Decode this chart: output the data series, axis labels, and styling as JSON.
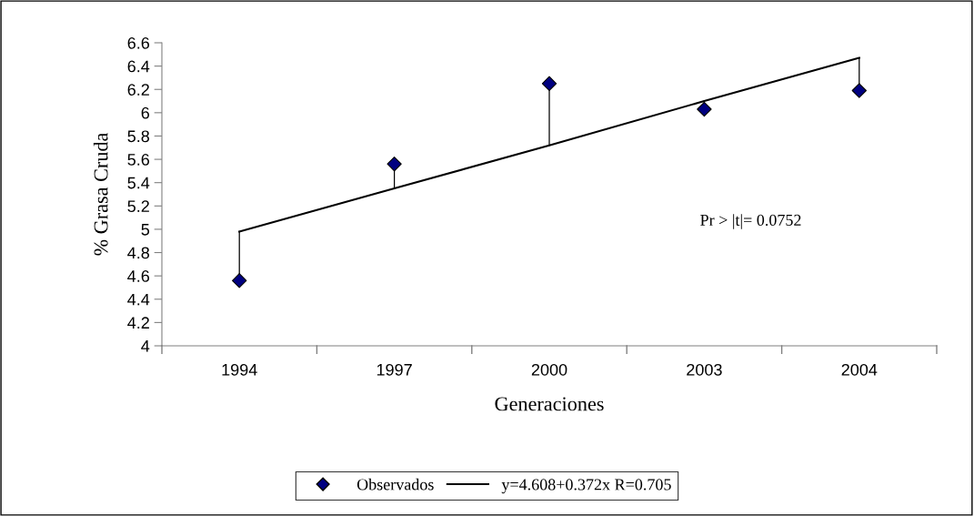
{
  "chart_data": {
    "type": "scatter",
    "xlabel": "Generaciones",
    "ylabel": "% Grasa Cruda",
    "categories": [
      "1994",
      "1997",
      "2000",
      "2003",
      "2004"
    ],
    "series": [
      {
        "name": "Observados",
        "color": "#000080",
        "marker": "diamond",
        "values": [
          4.56,
          5.56,
          6.25,
          6.03,
          6.19
        ],
        "errors": [
          [
            4.56,
            4.98
          ],
          [
            5.35,
            5.56
          ],
          [
            5.72,
            6.25
          ],
          [
            6.03,
            6.1
          ],
          [
            6.19,
            6.47
          ]
        ]
      },
      {
        "name": "y=4.608+0.372x R=0.705",
        "type": "line",
        "color": "#000000",
        "marker": "none",
        "line_style": "solid",
        "values": [
          4.98,
          5.35,
          5.72,
          6.1,
          6.47
        ]
      }
    ],
    "ylim": [
      4,
      6.6
    ],
    "yticks": [
      4,
      4.2,
      4.4,
      4.6,
      4.8,
      5,
      5.2,
      5.4,
      5.6,
      5.8,
      6,
      6.2,
      6.4,
      6.6
    ],
    "annotations": [
      "Pr > |t|= 0.0752"
    ],
    "grid": false,
    "legend": "bottom"
  }
}
